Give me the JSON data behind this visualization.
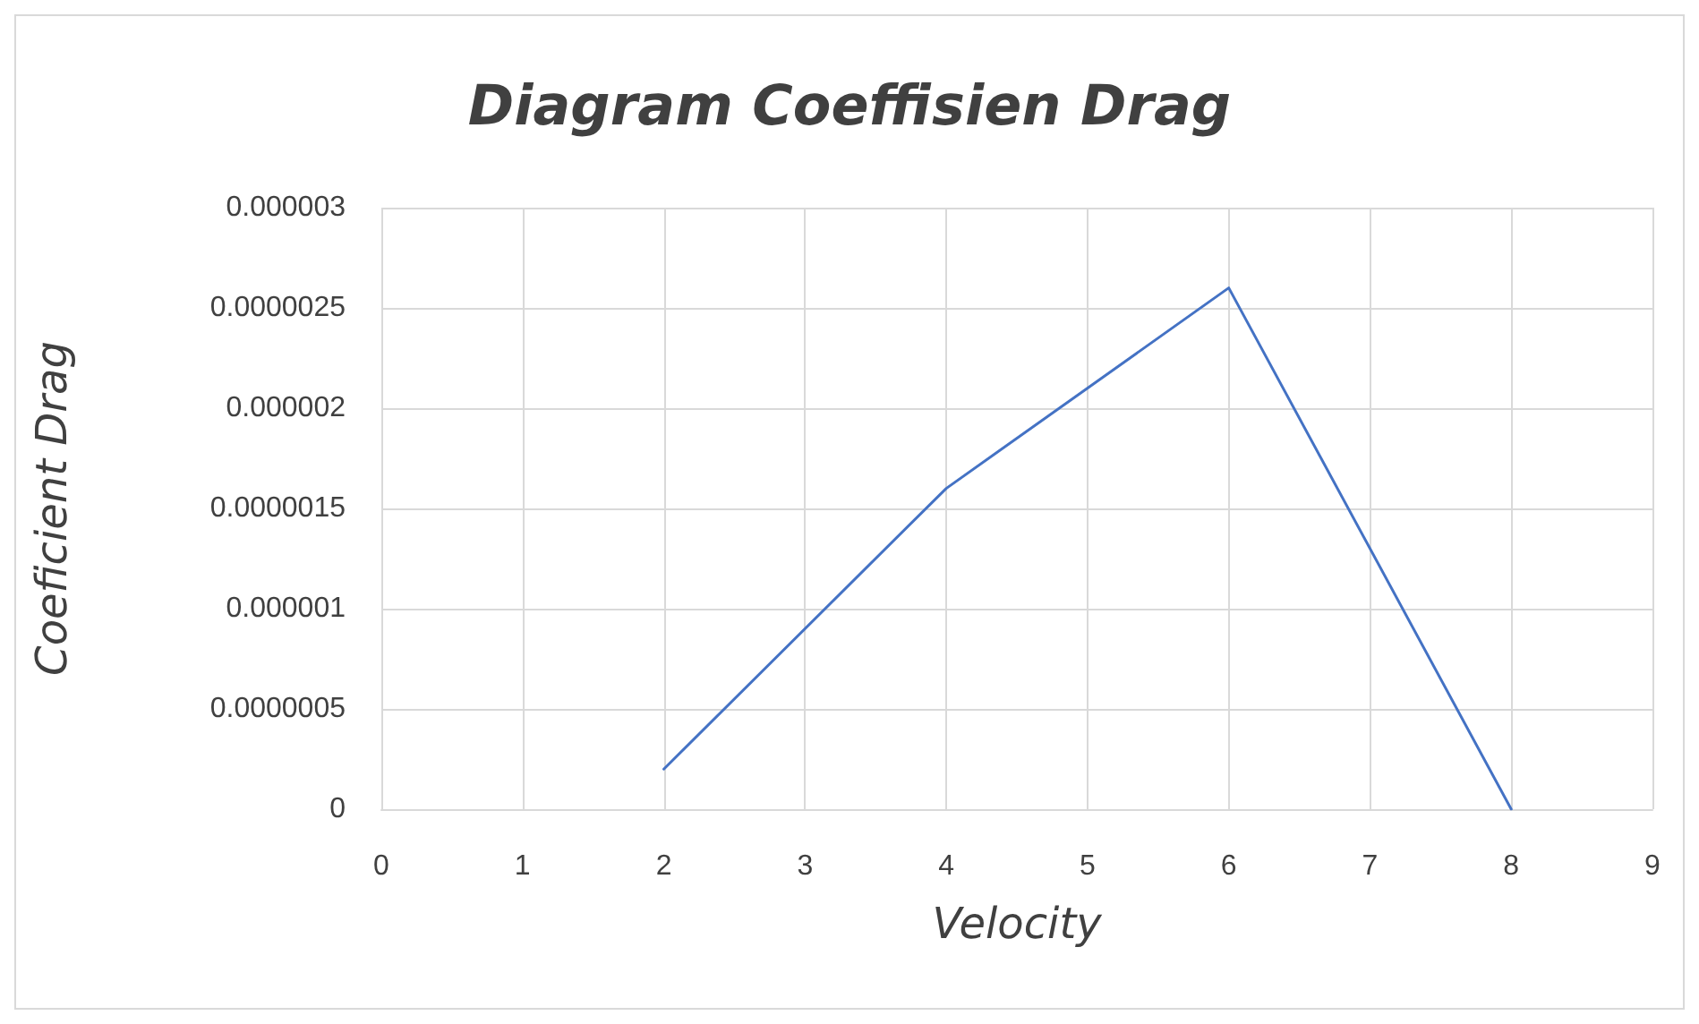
{
  "chart_data": {
    "type": "line",
    "title": "Diagram Coeffisien Drag",
    "xlabel": "Velocity",
    "ylabel": "Coeficient Drag",
    "x": [
      2,
      4,
      6,
      8
    ],
    "series": [
      {
        "color": "#4472c4",
        "values": [
          2e-07,
          1.6e-06,
          2.6e-06,
          0
        ]
      }
    ],
    "xlim": [
      0,
      9
    ],
    "xticks": [
      0,
      1,
      2,
      3,
      4,
      5,
      6,
      7,
      8,
      9
    ],
    "ylim": [
      0,
      3e-06
    ],
    "yticks": [
      {
        "value": 0,
        "label": "0"
      },
      {
        "value": 5e-07,
        "label": "0.0000005"
      },
      {
        "value": 1e-06,
        "label": "0.000001"
      },
      {
        "value": 1.5e-06,
        "label": "0.0000015"
      },
      {
        "value": 2e-06,
        "label": "0.000002"
      },
      {
        "value": 2.5e-06,
        "label": "0.0000025"
      },
      {
        "value": 3e-06,
        "label": "0.000003"
      }
    ],
    "grid": true,
    "marker": "none",
    "line_style": "solid"
  }
}
